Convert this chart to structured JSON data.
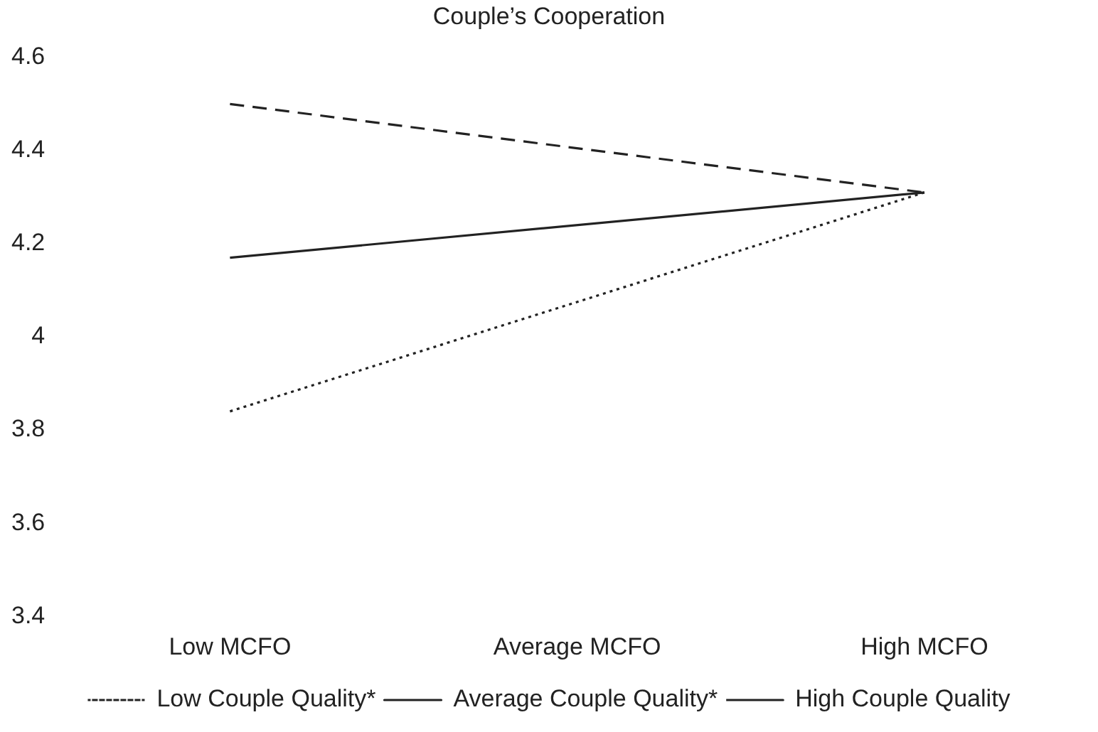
{
  "chart_data": {
    "type": "line",
    "title": "Couple’s Cooperation",
    "categories": [
      "Low MCFO",
      "Average MCFO",
      "High MCFO"
    ],
    "series": [
      {
        "name": "Low Couple Quality*",
        "color": "#222222",
        "line_style": "dotted",
        "values": [
          3.84,
          null,
          4.31
        ]
      },
      {
        "name": "Average Couple Quality*",
        "color": "#222222",
        "line_style": "solid",
        "values": [
          4.17,
          null,
          4.31
        ]
      },
      {
        "name": "High Couple Quality",
        "color": "#222222",
        "line_style": "dashed",
        "values": [
          4.5,
          null,
          4.31
        ]
      }
    ],
    "ylim": [
      3.4,
      4.6
    ],
    "yticks": [
      3.4,
      3.6,
      3.8,
      4,
      4.2,
      4.4,
      4.6
    ],
    "grid": false,
    "legend": "bottom",
    "marker": "none"
  }
}
